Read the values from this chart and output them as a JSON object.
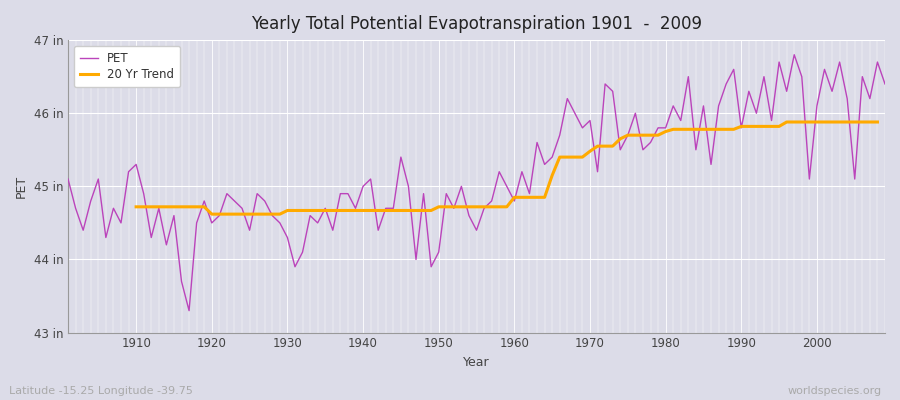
{
  "title": "Yearly Total Potential Evapotranspiration 1901  -  2009",
  "ylabel": "PET",
  "xlabel": "Year",
  "lat_lon_label": "Latitude -15.25 Longitude -39.75",
  "watermark": "worldspecies.org",
  "pet_color": "#bb44bb",
  "trend_color": "#ffaa00",
  "bg_color": "#dcdce8",
  "plot_bg_color": "#dcdce8",
  "years": [
    1901,
    1902,
    1903,
    1904,
    1905,
    1906,
    1907,
    1908,
    1909,
    1910,
    1911,
    1912,
    1913,
    1914,
    1915,
    1916,
    1917,
    1918,
    1919,
    1920,
    1921,
    1922,
    1923,
    1924,
    1925,
    1926,
    1927,
    1928,
    1929,
    1930,
    1931,
    1932,
    1933,
    1934,
    1935,
    1936,
    1937,
    1938,
    1939,
    1940,
    1941,
    1942,
    1943,
    1944,
    1945,
    1946,
    1947,
    1948,
    1949,
    1950,
    1951,
    1952,
    1953,
    1954,
    1955,
    1956,
    1957,
    1958,
    1959,
    1960,
    1961,
    1962,
    1963,
    1964,
    1965,
    1966,
    1967,
    1968,
    1969,
    1970,
    1971,
    1972,
    1973,
    1974,
    1975,
    1976,
    1977,
    1978,
    1979,
    1980,
    1981,
    1982,
    1983,
    1984,
    1985,
    1986,
    1987,
    1988,
    1989,
    1990,
    1991,
    1992,
    1993,
    1994,
    1995,
    1996,
    1997,
    1998,
    1999,
    2000,
    2001,
    2002,
    2003,
    2004,
    2005,
    2006,
    2007,
    2008,
    2009
  ],
  "pet_values": [
    45.1,
    44.7,
    44.4,
    44.8,
    45.1,
    44.3,
    44.7,
    44.5,
    45.2,
    45.3,
    44.9,
    44.3,
    44.7,
    44.2,
    44.6,
    43.7,
    43.3,
    44.5,
    44.8,
    44.5,
    44.6,
    44.9,
    44.8,
    44.7,
    44.4,
    44.9,
    44.8,
    44.6,
    44.5,
    44.3,
    43.9,
    44.1,
    44.6,
    44.5,
    44.7,
    44.4,
    44.9,
    44.9,
    44.7,
    45.0,
    45.1,
    44.4,
    44.7,
    44.7,
    45.4,
    45.0,
    44.0,
    44.9,
    43.9,
    44.1,
    44.9,
    44.7,
    45.0,
    44.6,
    44.4,
    44.7,
    44.8,
    45.2,
    45.0,
    44.8,
    45.2,
    44.9,
    45.6,
    45.3,
    45.4,
    45.7,
    46.2,
    46.0,
    45.8,
    45.9,
    45.2,
    46.4,
    46.3,
    45.5,
    45.7,
    46.0,
    45.5,
    45.6,
    45.8,
    45.8,
    46.1,
    45.9,
    46.5,
    45.5,
    46.1,
    45.3,
    46.1,
    46.4,
    46.6,
    45.8,
    46.3,
    46.0,
    46.5,
    45.9,
    46.7,
    46.3,
    46.8,
    46.5,
    45.1,
    46.1,
    46.6,
    46.3,
    46.7,
    46.2,
    45.1,
    46.5,
    46.2,
    46.7,
    46.4
  ],
  "trend_values": [
    null,
    null,
    null,
    null,
    null,
    null,
    null,
    null,
    null,
    44.72,
    44.72,
    44.72,
    44.72,
    44.72,
    44.72,
    44.72,
    44.72,
    44.72,
    44.72,
    44.62,
    44.62,
    44.62,
    44.62,
    44.62,
    44.62,
    44.62,
    44.62,
    44.62,
    44.62,
    44.67,
    44.67,
    44.67,
    44.67,
    44.67,
    44.67,
    44.67,
    44.67,
    44.67,
    44.67,
    44.67,
    44.67,
    44.67,
    44.67,
    44.67,
    44.67,
    44.67,
    44.67,
    44.67,
    44.67,
    44.72,
    44.72,
    44.72,
    44.72,
    44.72,
    44.72,
    44.72,
    44.72,
    44.72,
    44.72,
    44.85,
    44.85,
    44.85,
    44.85,
    44.85,
    45.15,
    45.4,
    45.4,
    45.4,
    45.4,
    45.48,
    45.55,
    45.55,
    45.55,
    45.65,
    45.7,
    45.7,
    45.7,
    45.7,
    45.7,
    45.75,
    45.78,
    45.78,
    45.78,
    45.78,
    45.78,
    45.78,
    45.78,
    45.78,
    45.78,
    45.82,
    45.82,
    45.82,
    45.82,
    45.82,
    45.82,
    45.88,
    45.88,
    45.88,
    45.88,
    45.88,
    45.88,
    45.88,
    45.88,
    45.88,
    45.88,
    45.88,
    45.88,
    45.88
  ],
  "ylim": [
    43.0,
    47.0
  ],
  "yticks": [
    43,
    44,
    45,
    46,
    47
  ],
  "ytick_labels": [
    "43 in",
    "44 in",
    "45 in",
    "46 in",
    "47 in"
  ],
  "xtick_years": [
    1910,
    1920,
    1930,
    1940,
    1950,
    1960,
    1970,
    1980,
    1990,
    2000
  ],
  "figsize": [
    9.0,
    4.0
  ],
  "dpi": 100
}
